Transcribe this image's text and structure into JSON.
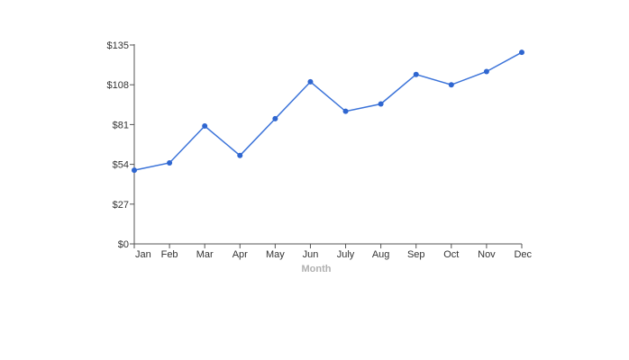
{
  "chart_data": {
    "type": "line",
    "xlabel": "Month",
    "ylabel": "",
    "categories": [
      "Jan",
      "Feb",
      "Mar",
      "Apr",
      "May",
      "Jun",
      "July",
      "Aug",
      "Sep",
      "Oct",
      "Nov",
      "Dec"
    ],
    "series": [
      {
        "values": [
          50,
          55,
          80,
          60,
          85,
          110,
          90,
          95,
          115,
          108,
          117,
          130
        ]
      }
    ],
    "ylim": [
      0,
      135
    ],
    "y_ticks": [
      {
        "value": 0,
        "label": "$0"
      },
      {
        "value": 27,
        "label": "$27"
      },
      {
        "value": 54,
        "label": "$54"
      },
      {
        "value": 81,
        "label": "$81"
      },
      {
        "value": 108,
        "label": "$108"
      },
      {
        "value": 135,
        "label": "$135"
      }
    ],
    "grid": false,
    "legend": "none",
    "colors": {
      "line": "#3b73d9",
      "marker": "#2f66d0",
      "axis": "#555555"
    }
  }
}
